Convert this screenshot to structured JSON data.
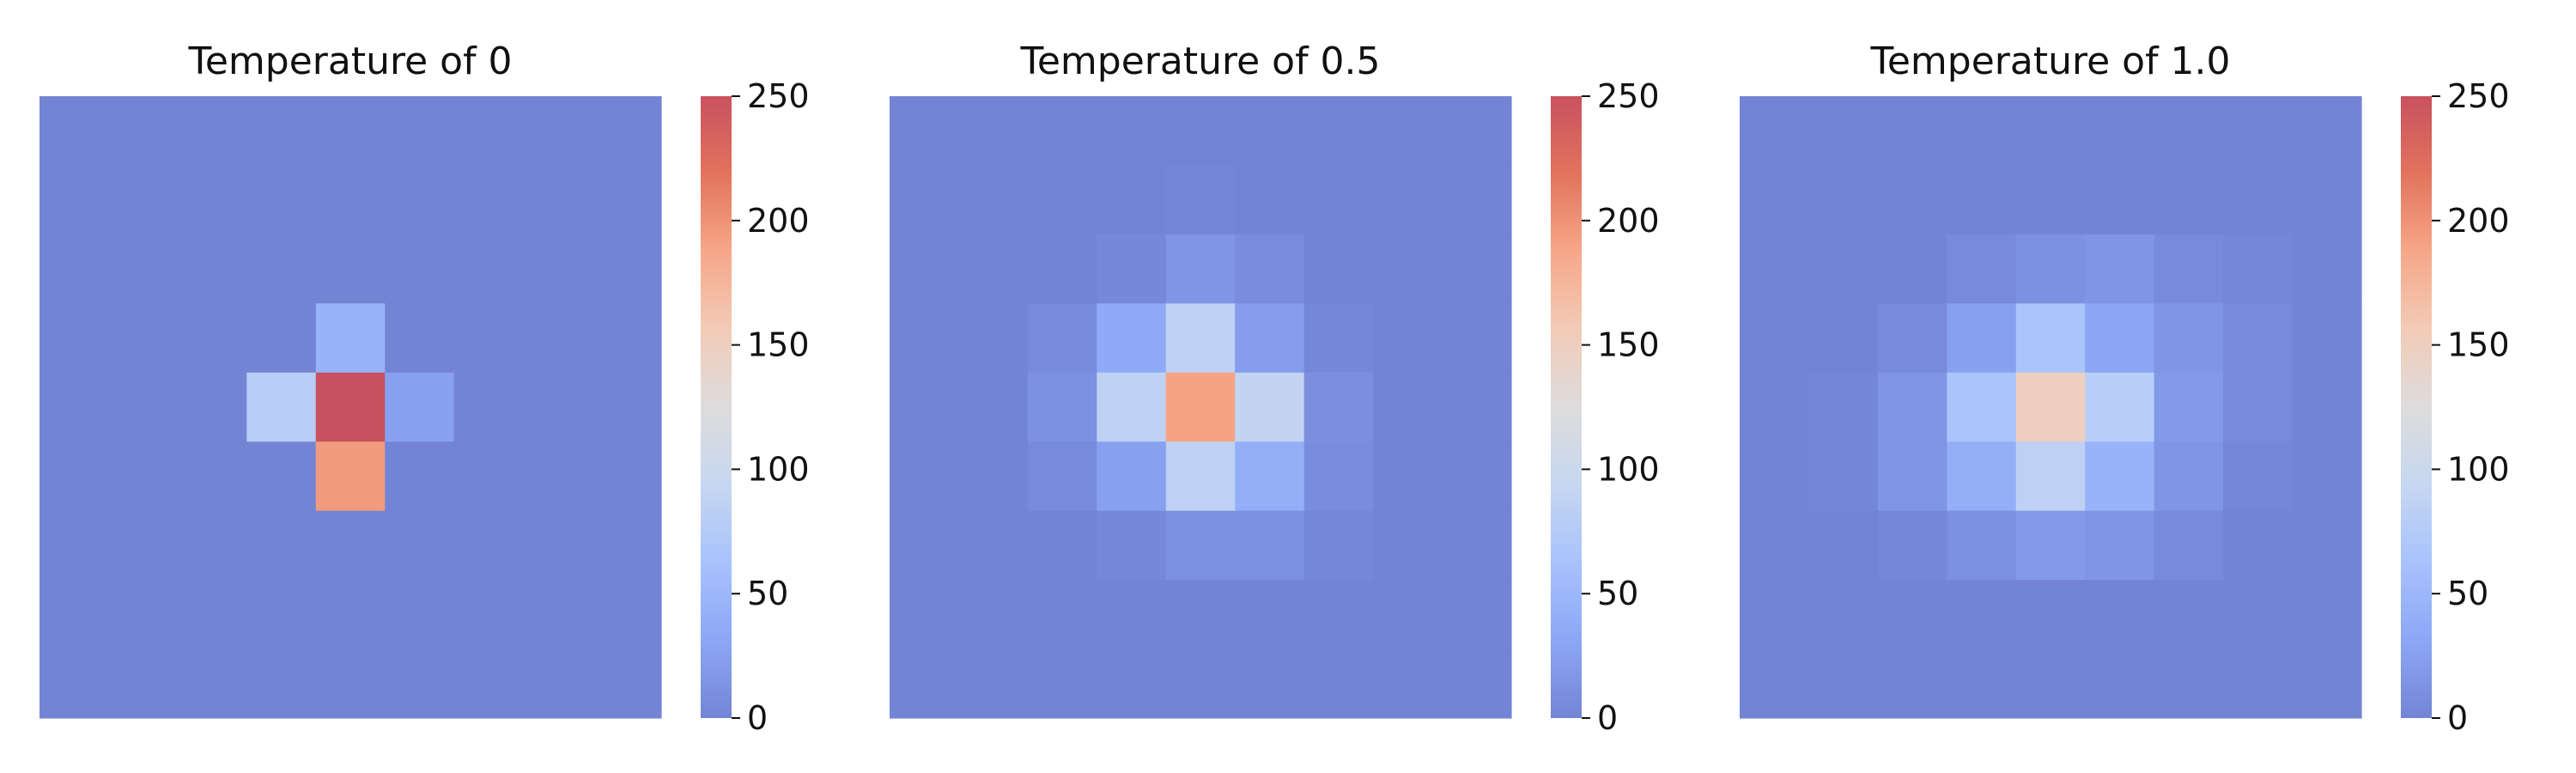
{
  "chart_data": [
    {
      "type": "heatmap",
      "title": "Temperature of 0",
      "grid_size": [
        9,
        9
      ],
      "grid": [
        [
          0,
          0,
          0,
          0,
          0,
          0,
          0,
          0,
          0
        ],
        [
          0,
          0,
          0,
          0,
          0,
          0,
          0,
          0,
          0
        ],
        [
          0,
          0,
          0,
          0,
          0,
          0,
          0,
          0,
          0
        ],
        [
          0,
          0,
          0,
          0,
          45,
          0,
          0,
          0,
          0
        ],
        [
          0,
          0,
          0,
          80,
          250,
          25,
          0,
          0,
          0
        ],
        [
          0,
          0,
          0,
          0,
          195,
          0,
          0,
          0,
          0
        ],
        [
          0,
          0,
          0,
          0,
          0,
          0,
          0,
          0,
          0
        ],
        [
          0,
          0,
          0,
          0,
          0,
          0,
          0,
          0,
          0
        ],
        [
          0,
          0,
          0,
          0,
          0,
          0,
          0,
          0,
          0
        ]
      ],
      "colorbar": {
        "min": 0,
        "max": 250,
        "ticks": [
          "0",
          "50",
          "100",
          "150",
          "200",
          "250"
        ]
      }
    },
    {
      "type": "heatmap",
      "title": "Temperature of 0.5",
      "grid_size": [
        9,
        9
      ],
      "grid": [
        [
          0,
          0,
          0,
          0,
          0,
          0,
          0,
          0,
          0
        ],
        [
          0,
          0,
          0,
          0,
          2,
          0,
          0,
          0,
          0
        ],
        [
          0,
          0,
          0,
          4,
          15,
          8,
          0,
          0,
          0
        ],
        [
          0,
          0,
          5,
          35,
          85,
          22,
          3,
          0,
          0
        ],
        [
          0,
          0,
          12,
          85,
          190,
          90,
          10,
          0,
          0
        ],
        [
          0,
          0,
          5,
          25,
          85,
          40,
          8,
          0,
          0
        ],
        [
          0,
          0,
          0,
          4,
          12,
          12,
          3,
          0,
          0
        ],
        [
          0,
          0,
          0,
          0,
          0,
          0,
          0,
          0,
          0
        ],
        [
          0,
          0,
          0,
          0,
          0,
          0,
          0,
          0,
          0
        ]
      ],
      "colorbar": {
        "min": 0,
        "max": 250,
        "ticks": [
          "0",
          "50",
          "100",
          "150",
          "200",
          "250"
        ]
      }
    },
    {
      "type": "heatmap",
      "title": "Temperature of 1.0",
      "grid_size": [
        9,
        9
      ],
      "grid": [
        [
          0,
          0,
          0,
          0,
          0,
          0,
          0,
          0,
          0
        ],
        [
          0,
          0,
          0,
          0,
          0,
          0,
          0,
          0,
          0
        ],
        [
          0,
          0,
          0,
          5,
          12,
          15,
          5,
          3,
          0
        ],
        [
          0,
          0,
          5,
          25,
          65,
          30,
          15,
          5,
          0
        ],
        [
          0,
          2,
          15,
          65,
          150,
          80,
          20,
          5,
          0
        ],
        [
          0,
          2,
          15,
          40,
          85,
          45,
          15,
          3,
          0
        ],
        [
          0,
          0,
          3,
          12,
          20,
          15,
          5,
          0,
          0
        ],
        [
          0,
          0,
          0,
          0,
          0,
          0,
          0,
          0,
          0
        ],
        [
          0,
          0,
          0,
          0,
          0,
          0,
          0,
          0,
          0
        ]
      ],
      "colorbar": {
        "min": 0,
        "max": 250,
        "ticks": [
          "0",
          "50",
          "100",
          "150",
          "200",
          "250"
        ]
      }
    }
  ],
  "colormap": "coolwarm",
  "colors": {
    "low": "#7484d5",
    "mid": "#dddcdc",
    "high": "#c8525f"
  }
}
